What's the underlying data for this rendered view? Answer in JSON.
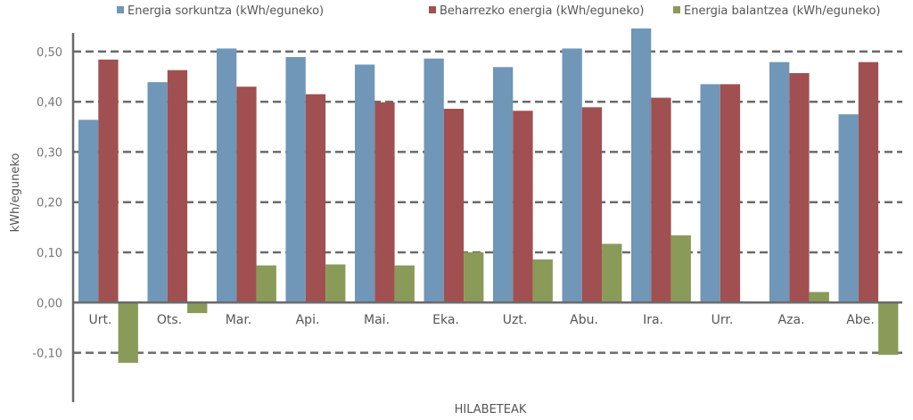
{
  "chart_data": {
    "type": "bar",
    "title": "",
    "xlabel": "HILABETEAK",
    "ylabel": "kWh/eguneko",
    "ylim": [
      -0.2,
      0.55
    ],
    "yticks": [
      -0.1,
      0.0,
      0.1,
      0.2,
      0.3,
      0.4,
      0.5
    ],
    "ytick_labels": [
      "-0,10",
      "0,00",
      "0,10",
      "0,20",
      "0,30",
      "0,40",
      "0,50"
    ],
    "grid": "horizontal dashed",
    "legend_position": "top",
    "categories": [
      "Urt.",
      "Ots.",
      "Mar.",
      "Api.",
      "Mai.",
      "Eka.",
      "Uzt.",
      "Abu.",
      "Ira.",
      "Urr.",
      "Aza.",
      "Abe."
    ],
    "series": [
      {
        "name": "Energia sorkuntza (kWh/eguneko)",
        "color": "#7096b8",
        "values": [
          0.364,
          0.439,
          0.506,
          0.489,
          0.474,
          0.486,
          0.469,
          0.506,
          0.546,
          0.435,
          0.479,
          0.375
        ]
      },
      {
        "name": "Beharrezko energia (kWh/eguneko)",
        "color": "#a05050",
        "values": [
          0.484,
          0.463,
          0.43,
          0.415,
          0.399,
          0.386,
          0.382,
          0.389,
          0.408,
          0.435,
          0.457,
          0.479
        ]
      },
      {
        "name": "Energia balantzea (kWh/eguneko)",
        "color": "#8a9a58",
        "values": [
          -0.12,
          -0.021,
          0.074,
          0.076,
          0.074,
          0.1,
          0.086,
          0.117,
          0.134,
          0.0,
          0.021,
          -0.104
        ]
      }
    ]
  }
}
